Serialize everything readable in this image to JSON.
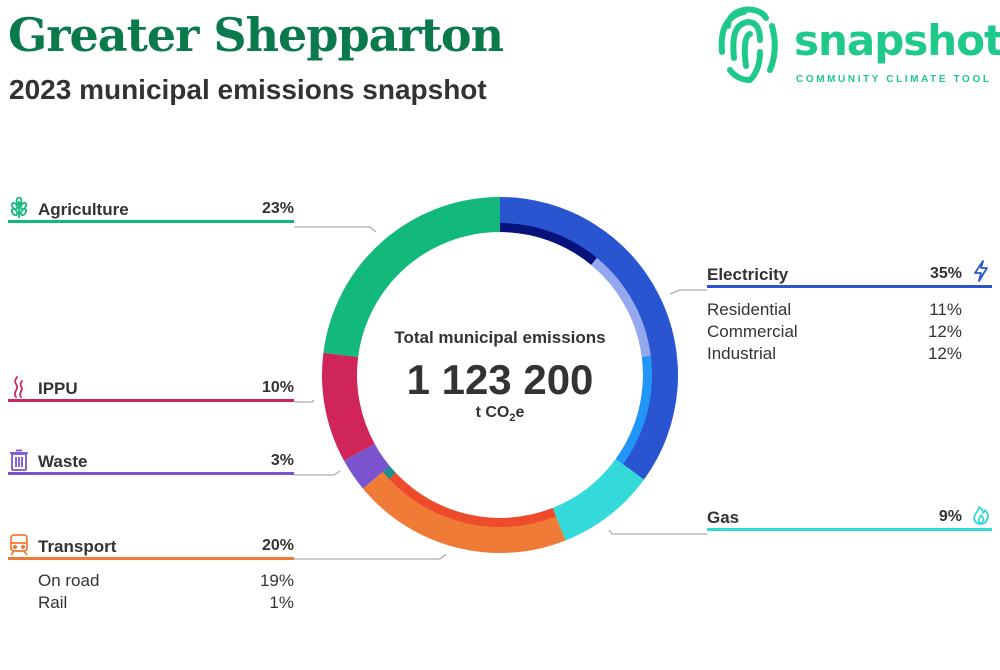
{
  "header": {
    "title": "Greater Shepparton",
    "subtitle": "2023 municipal emissions snapshot"
  },
  "logo": {
    "wordmark": "snapshot",
    "tagline": "COMMUNITY CLIMATE TOOL",
    "icon": "fingerprint-icon",
    "color": "#1fc98a"
  },
  "center": {
    "label": "Total municipal emissions",
    "value": "1 123 200",
    "unit_prefix": "t CO",
    "unit_sub": "2",
    "unit_suffix": "e"
  },
  "categories": {
    "agriculture": {
      "label": "Agriculture",
      "pct": "23%",
      "icon": "wheat-icon",
      "color": "#12b97a"
    },
    "ippu": {
      "label": "IPPU",
      "pct": "10%",
      "icon": "smoke-icon",
      "color": "#cf2558"
    },
    "waste": {
      "label": "Waste",
      "pct": "3%",
      "icon": "bin-icon",
      "color": "#7a53cf"
    },
    "transport": {
      "label": "Transport",
      "pct": "20%",
      "icon": "train-icon",
      "color": "#f07b36",
      "subs": [
        {
          "label": "On road",
          "pct": "19%"
        },
        {
          "label": "Rail",
          "pct": "1%"
        }
      ]
    },
    "electricity": {
      "label": "Electricity",
      "pct": "35%",
      "icon": "lightning-icon",
      "color": "#2a55d1",
      "subs": [
        {
          "label": "Residential",
          "pct": "11%"
        },
        {
          "label": "Commercial",
          "pct": "12%"
        },
        {
          "label": "Industrial",
          "pct": "12%"
        }
      ]
    },
    "gas": {
      "label": "Gas",
      "pct": "9%",
      "icon": "flame-icon",
      "color": "#34d9d9"
    }
  },
  "chart_data": {
    "type": "pie",
    "title": "Total municipal emissions",
    "total": 1123200,
    "unit": "t CO2e",
    "slices": [
      {
        "name": "Electricity",
        "value": 35,
        "color": "#2a55d1",
        "subs": [
          {
            "name": "Residential",
            "value": 11,
            "color": "#07127a"
          },
          {
            "name": "Commercial",
            "value": 12,
            "color": "#93a8ee"
          },
          {
            "name": "Industrial",
            "value": 12,
            "color": "#2196f7"
          }
        ]
      },
      {
        "name": "Gas",
        "value": 9,
        "color": "#34d9d9"
      },
      {
        "name": "Transport",
        "value": 20,
        "color": "#f07b36",
        "subs": [
          {
            "name": "On road",
            "value": 19,
            "color": "#ee4a2c"
          },
          {
            "name": "Rail",
            "value": 1,
            "color": "#1f8d8d"
          }
        ]
      },
      {
        "name": "Waste",
        "value": 3,
        "color": "#7a53cf"
      },
      {
        "name": "IPPU",
        "value": 10,
        "color": "#cf2558"
      },
      {
        "name": "Agriculture",
        "value": 23,
        "color": "#12b97a"
      }
    ]
  }
}
